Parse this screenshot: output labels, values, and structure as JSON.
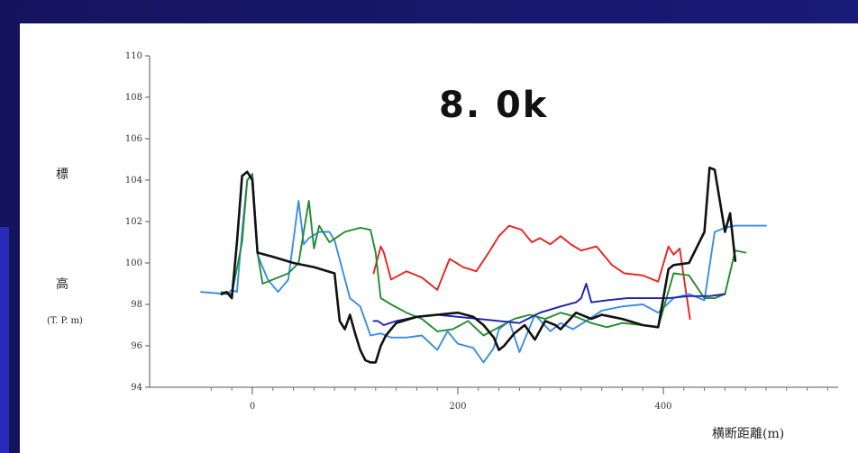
{
  "chart_data": {
    "type": "line",
    "title": "8. 0k",
    "ylabel_top": "標",
    "ylabel_bottom": "高",
    "ylabel_unit": "(T. P. m)",
    "xlabel": "横断距離(m)",
    "xlim": [
      -50,
      550
    ],
    "ylim": [
      94,
      110
    ],
    "yticks": [
      94,
      96,
      98,
      100,
      102,
      104,
      106,
      108,
      110
    ],
    "xticks": [
      0,
      200,
      400
    ],
    "grid": false,
    "series": [
      {
        "color": "#e8231e",
        "x": [
          118,
          125,
          128,
          135,
          150,
          165,
          180,
          192,
          205,
          218,
          230,
          240,
          250,
          262,
          272,
          280,
          290,
          300,
          310,
          320,
          335,
          350,
          362,
          380,
          395,
          405,
          410,
          416,
          420,
          426
        ],
        "y": [
          99.5,
          100.8,
          100.5,
          99.2,
          99.6,
          99.3,
          98.7,
          100.2,
          99.8,
          99.6,
          100.5,
          101.3,
          101.8,
          101.6,
          101.0,
          101.2,
          100.9,
          101.3,
          100.9,
          100.6,
          100.8,
          99.9,
          99.5,
          99.4,
          99.1,
          100.8,
          100.4,
          100.7,
          99.3,
          97.3
        ]
      },
      {
        "color": "#3a8ee0",
        "x": [
          -50,
          -25,
          -20,
          -15,
          -10,
          -5,
          0,
          5,
          15,
          25,
          35,
          45,
          50,
          55,
          65,
          75,
          80,
          95,
          105,
          115,
          125,
          135,
          150,
          165,
          180,
          190,
          200,
          215,
          225,
          235,
          240,
          250,
          260,
          275,
          290,
          300,
          312,
          325,
          340,
          360,
          380,
          395,
          410,
          425,
          440,
          450,
          460,
          470,
          480,
          500
        ],
        "y": [
          98.6,
          98.5,
          98.7,
          98.6,
          101.5,
          104.0,
          104.3,
          100.4,
          99.2,
          98.6,
          99.2,
          103.0,
          100.9,
          101.2,
          101.5,
          101.5,
          101.1,
          98.3,
          97.9,
          96.5,
          96.6,
          96.4,
          96.4,
          96.5,
          95.8,
          96.7,
          96.1,
          95.9,
          95.2,
          95.9,
          96.8,
          97.2,
          95.7,
          97.5,
          96.7,
          97.1,
          96.8,
          97.2,
          97.7,
          97.9,
          98.0,
          97.6,
          98.3,
          98.5,
          98.2,
          101.5,
          101.7,
          101.8,
          101.8,
          101.8
        ]
      },
      {
        "color": "#228c2e",
        "x": [
          -30,
          -20,
          -10,
          -5,
          0,
          5,
          10,
          25,
          35,
          45,
          55,
          60,
          65,
          75,
          90,
          105,
          115,
          120,
          125,
          135,
          150,
          165,
          180,
          195,
          210,
          225,
          240,
          255,
          270,
          285,
          300,
          315,
          330,
          345,
          360,
          380,
          395,
          410,
          425,
          440,
          450,
          460,
          470,
          480
        ],
        "y": [
          98.6,
          98.5,
          101.0,
          104.0,
          104.3,
          100.5,
          99.0,
          99.3,
          99.5,
          100.0,
          103.0,
          100.7,
          101.8,
          101.0,
          101.5,
          101.7,
          101.6,
          100.5,
          98.3,
          98.0,
          97.6,
          97.3,
          96.7,
          96.8,
          97.2,
          96.5,
          96.9,
          97.3,
          97.5,
          97.3,
          97.6,
          97.4,
          97.1,
          96.9,
          97.1,
          97.0,
          96.9,
          99.5,
          99.4,
          98.3,
          98.3,
          98.5,
          100.6,
          100.5
        ]
      },
      {
        "color": "#1e1eb4",
        "x": [
          118,
          122,
          128,
          140,
          160,
          180,
          200,
          220,
          240,
          260,
          280,
          300,
          315,
          320,
          325,
          330,
          345,
          365,
          385,
          405,
          425,
          445,
          460
        ],
        "y": [
          97.2,
          97.2,
          97.0,
          97.2,
          97.4,
          97.5,
          97.4,
          97.3,
          97.2,
          97.1,
          97.6,
          97.9,
          98.1,
          98.3,
          99.0,
          98.1,
          98.2,
          98.3,
          98.3,
          98.3,
          98.4,
          98.4,
          98.5
        ]
      },
      {
        "color": "#111111",
        "x": [
          -30,
          -25,
          -20,
          -15,
          -10,
          -5,
          0,
          5,
          20,
          40,
          60,
          80,
          85,
          90,
          95,
          100,
          105,
          110,
          115,
          120,
          125,
          130,
          140,
          160,
          180,
          200,
          215,
          225,
          235,
          240,
          245,
          255,
          265,
          275,
          285,
          295,
          300,
          315,
          330,
          340,
          350,
          360,
          380,
          395,
          405,
          410,
          425,
          440,
          445,
          450,
          455,
          460,
          465,
          470
        ],
        "y": [
          98.5,
          98.6,
          98.3,
          101.0,
          104.2,
          104.4,
          104.0,
          100.5,
          100.3,
          100.0,
          99.8,
          99.5,
          97.2,
          96.8,
          97.5,
          96.6,
          95.8,
          95.3,
          95.2,
          95.2,
          96.0,
          96.5,
          97.1,
          97.4,
          97.5,
          97.6,
          97.4,
          97.0,
          96.4,
          95.8,
          96.0,
          96.6,
          97.0,
          96.3,
          97.2,
          97.0,
          96.8,
          97.6,
          97.3,
          97.5,
          97.4,
          97.3,
          97.0,
          96.9,
          99.7,
          99.9,
          100.0,
          101.5,
          104.6,
          104.5,
          103.0,
          101.5,
          102.4,
          100.1
        ]
      }
    ]
  }
}
